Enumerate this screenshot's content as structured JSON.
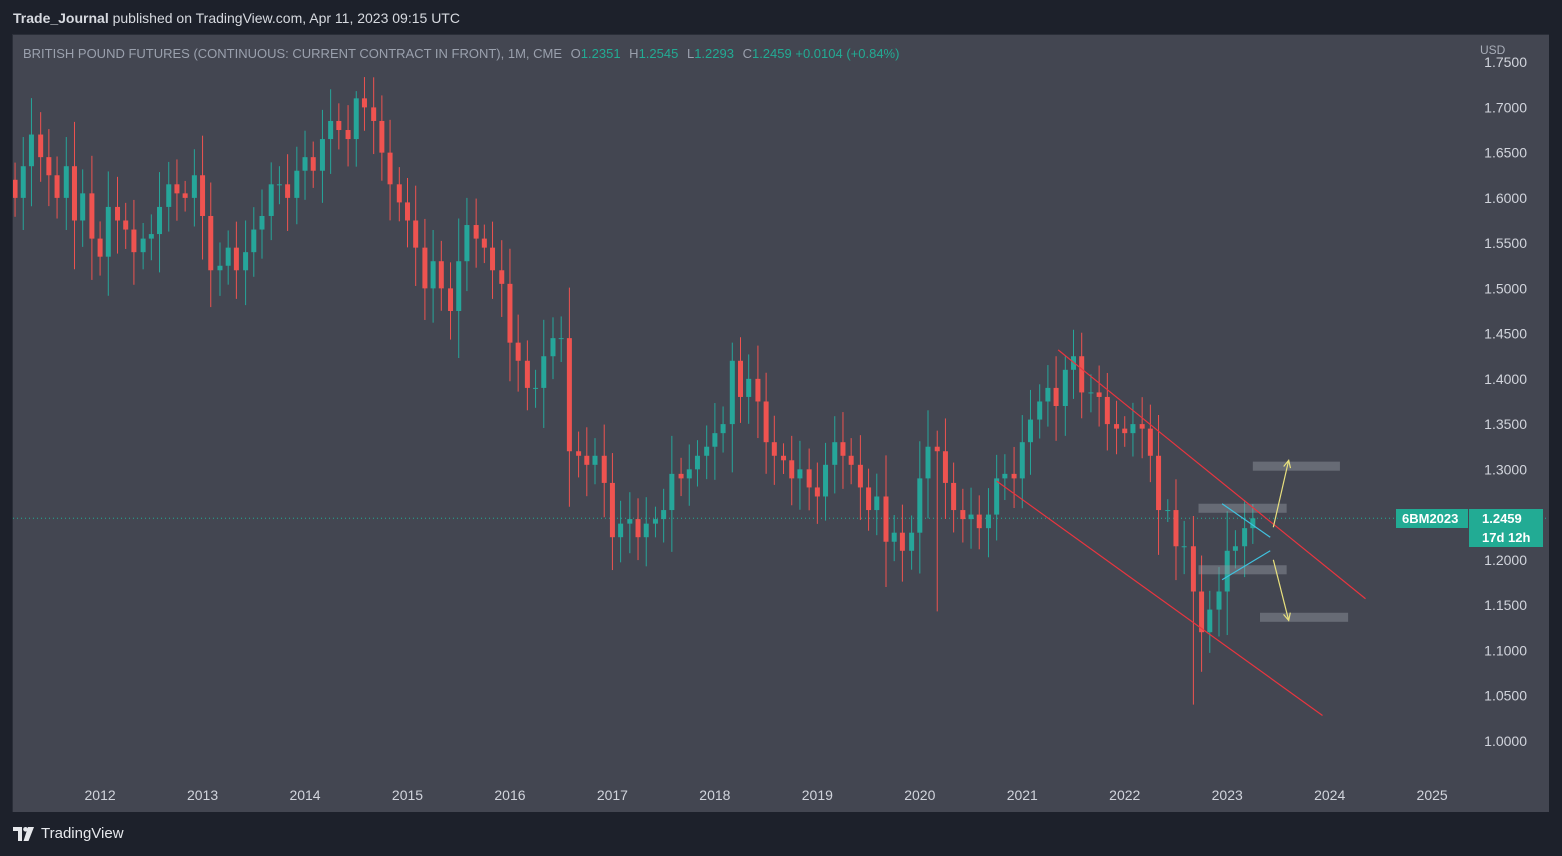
{
  "header": {
    "author": "Trade_Journal",
    "published_text": "published on TradingView.com, Apr 11, 2023 09:15 UTC"
  },
  "legend": {
    "symbol_description": "BRITISH POUND FUTURES (CONTINUOUS: CURRENT CONTRACT IN FRONT), 1M, CME",
    "open_label": "O",
    "open": "1.2351",
    "high_label": "H",
    "high": "1.2545",
    "low_label": "L",
    "low": "1.2293",
    "close_label": "C",
    "close": "1.2459",
    "change": "+0.0104 (+0.84%)"
  },
  "price_axis": {
    "currency": "USD"
  },
  "price_tag": {
    "symbol": "6BM2023",
    "price": "1.2459",
    "countdown": "17d 12h"
  },
  "footer": {
    "brand": "TradingView"
  },
  "colors": {
    "background": "#434651",
    "bull": "#26a69a",
    "bear": "#ef5350",
    "channel": "#e8353f",
    "triangle": "#3fc2df",
    "arrow": "#e8e07e",
    "zone": "#9598a1",
    "axis_text": "#d1d4dc"
  },
  "chart_data": {
    "type": "candlestick",
    "interval": "1M",
    "title": "BRITISH POUND FUTURES (CONTINUOUS: CURRENT CONTRACT IN FRONT), 1M, CME",
    "ylim": [
      0.96,
      1.78
    ],
    "xlim": [
      2011.15,
      2025.35
    ],
    "yticks": [
      1.0,
      1.05,
      1.1,
      1.15,
      1.2,
      1.25,
      1.3,
      1.35,
      1.4,
      1.45,
      1.5,
      1.55,
      1.6,
      1.65,
      1.7,
      1.75
    ],
    "ytick_labels": [
      "1.0000",
      "1.0500",
      "1.1000",
      "1.1500",
      "1.2000",
      "1.2500",
      "1.3000",
      "1.3500",
      "1.4000",
      "1.4500",
      "1.5000",
      "1.5500",
      "1.6000",
      "1.6500",
      "1.7000",
      "1.7500"
    ],
    "xticks": [
      2012,
      2013,
      2014,
      2015,
      2016,
      2017,
      2018,
      2019,
      2020,
      2021,
      2022,
      2023,
      2024,
      2025
    ],
    "xtick_labels": [
      "2012",
      "2013",
      "2014",
      "2015",
      "2016",
      "2017",
      "2018",
      "2019",
      "2020",
      "2021",
      "2022",
      "2023",
      "2024",
      "2025"
    ],
    "last_price": 1.2459,
    "close_path": [
      [
        2011.17,
        1.6
      ],
      [
        2011.25,
        1.635
      ],
      [
        2011.33,
        1.67
      ],
      [
        2011.42,
        1.645
      ],
      [
        2011.5,
        1.625
      ],
      [
        2011.58,
        1.6
      ],
      [
        2011.67,
        1.635
      ],
      [
        2011.75,
        1.575
      ],
      [
        2011.83,
        1.605
      ],
      [
        2011.92,
        1.555
      ],
      [
        2012.0,
        1.535
      ],
      [
        2012.08,
        1.59
      ],
      [
        2012.17,
        1.575
      ],
      [
        2012.25,
        1.565
      ],
      [
        2012.33,
        1.54
      ],
      [
        2012.42,
        1.555
      ],
      [
        2012.5,
        1.56
      ],
      [
        2012.58,
        1.59
      ],
      [
        2012.67,
        1.615
      ],
      [
        2012.75,
        1.605
      ],
      [
        2012.83,
        1.6
      ],
      [
        2012.92,
        1.625
      ],
      [
        2013.0,
        1.58
      ],
      [
        2013.08,
        1.52
      ],
      [
        2013.17,
        1.525
      ],
      [
        2013.25,
        1.545
      ],
      [
        2013.33,
        1.52
      ],
      [
        2013.42,
        1.54
      ],
      [
        2013.5,
        1.565
      ],
      [
        2013.58,
        1.58
      ],
      [
        2013.67,
        1.615
      ],
      [
        2013.75,
        1.615
      ],
      [
        2013.83,
        1.6
      ],
      [
        2013.92,
        1.63
      ],
      [
        2014.0,
        1.645
      ],
      [
        2014.08,
        1.63
      ],
      [
        2014.17,
        1.665
      ],
      [
        2014.25,
        1.685
      ],
      [
        2014.33,
        1.675
      ],
      [
        2014.42,
        1.665
      ],
      [
        2014.5,
        1.71
      ],
      [
        2014.58,
        1.7
      ],
      [
        2014.67,
        1.685
      ],
      [
        2014.75,
        1.65
      ],
      [
        2014.83,
        1.615
      ],
      [
        2014.92,
        1.595
      ],
      [
        2015.0,
        1.575
      ],
      [
        2015.08,
        1.545
      ],
      [
        2015.17,
        1.5
      ],
      [
        2015.25,
        1.53
      ],
      [
        2015.33,
        1.5
      ],
      [
        2015.42,
        1.475
      ],
      [
        2015.5,
        1.53
      ],
      [
        2015.58,
        1.57
      ],
      [
        2015.67,
        1.555
      ],
      [
        2015.75,
        1.545
      ],
      [
        2015.83,
        1.52
      ],
      [
        2015.92,
        1.505
      ],
      [
        2016.0,
        1.44
      ],
      [
        2016.08,
        1.42
      ],
      [
        2016.17,
        1.39
      ],
      [
        2016.25,
        1.39
      ],
      [
        2016.33,
        1.425
      ],
      [
        2016.42,
        1.445
      ],
      [
        2016.5,
        1.445
      ],
      [
        2016.58,
        1.32
      ],
      [
        2016.67,
        1.315
      ],
      [
        2016.75,
        1.305
      ],
      [
        2016.83,
        1.315
      ],
      [
        2016.92,
        1.285
      ],
      [
        2017.0,
        1.225
      ],
      [
        2017.08,
        1.24
      ],
      [
        2017.17,
        1.245
      ],
      [
        2017.25,
        1.225
      ],
      [
        2017.33,
        1.24
      ],
      [
        2017.42,
        1.245
      ],
      [
        2017.5,
        1.255
      ],
      [
        2017.58,
        1.295
      ],
      [
        2017.67,
        1.29
      ],
      [
        2017.75,
        1.3
      ],
      [
        2017.83,
        1.315
      ],
      [
        2017.92,
        1.325
      ],
      [
        2018.0,
        1.34
      ],
      [
        2018.08,
        1.35
      ],
      [
        2018.17,
        1.42
      ],
      [
        2018.25,
        1.38
      ],
      [
        2018.33,
        1.4
      ],
      [
        2018.42,
        1.375
      ],
      [
        2018.5,
        1.33
      ],
      [
        2018.58,
        1.315
      ],
      [
        2018.67,
        1.31
      ],
      [
        2018.75,
        1.29
      ],
      [
        2018.83,
        1.3
      ],
      [
        2018.92,
        1.28
      ],
      [
        2019.0,
        1.27
      ],
      [
        2019.08,
        1.305
      ],
      [
        2019.17,
        1.33
      ],
      [
        2019.25,
        1.315
      ],
      [
        2019.33,
        1.305
      ],
      [
        2019.42,
        1.28
      ],
      [
        2019.5,
        1.255
      ],
      [
        2019.58,
        1.27
      ],
      [
        2019.67,
        1.22
      ],
      [
        2019.75,
        1.23
      ],
      [
        2019.83,
        1.21
      ],
      [
        2019.92,
        1.23
      ],
      [
        2020.0,
        1.29
      ],
      [
        2020.08,
        1.325
      ],
      [
        2020.17,
        1.32
      ],
      [
        2020.25,
        1.285
      ],
      [
        2020.33,
        1.255
      ],
      [
        2020.42,
        1.245
      ],
      [
        2020.5,
        1.25
      ],
      [
        2020.58,
        1.235
      ],
      [
        2020.67,
        1.25
      ],
      [
        2020.75,
        1.29
      ],
      [
        2020.83,
        1.295
      ],
      [
        2020.92,
        1.29
      ],
      [
        2021.0,
        1.33
      ],
      [
        2021.08,
        1.355
      ],
      [
        2021.17,
        1.375
      ],
      [
        2021.25,
        1.39
      ],
      [
        2021.33,
        1.37
      ],
      [
        2021.42,
        1.41
      ],
      [
        2021.5,
        1.425
      ],
      [
        2021.58,
        1.385
      ],
      [
        2021.67,
        1.385
      ],
      [
        2021.75,
        1.38
      ],
      [
        2021.83,
        1.35
      ],
      [
        2021.92,
        1.345
      ],
      [
        2022.0,
        1.34
      ],
      [
        2022.08,
        1.35
      ],
      [
        2022.17,
        1.345
      ],
      [
        2022.25,
        1.315
      ],
      [
        2022.33,
        1.255
      ],
      [
        2022.42,
        1.255
      ],
      [
        2022.5,
        1.215
      ],
      [
        2022.58,
        1.215
      ],
      [
        2022.67,
        1.165
      ],
      [
        2022.75,
        1.12
      ],
      [
        2022.83,
        1.145
      ],
      [
        2022.92,
        1.165
      ],
      [
        2023.0,
        1.21
      ],
      [
        2023.08,
        1.215
      ],
      [
        2023.17,
        1.235
      ],
      [
        2023.25,
        1.2459
      ]
    ],
    "drawings": {
      "descending_channel": {
        "upper_line": [
          [
            2021.35,
            1.432
          ],
          [
            2024.35,
            1.157
          ]
        ],
        "lower_line": [
          [
            2020.75,
            1.287
          ],
          [
            2023.93,
            1.028
          ]
        ]
      },
      "triangle": {
        "upper_line": [
          [
            2022.95,
            1.262
          ],
          [
            2023.42,
            1.225
          ]
        ],
        "lower_line": [
          [
            2022.95,
            1.178
          ],
          [
            2023.42,
            1.21
          ]
        ]
      },
      "zones": [
        {
          "x": [
            2023.25,
            2024.1
          ],
          "y": [
            1.2985,
            1.3085
          ]
        },
        {
          "x": [
            2022.72,
            2023.58
          ],
          "y": [
            1.252,
            1.262
          ]
        },
        {
          "x": [
            2022.72,
            2023.58
          ],
          "y": [
            1.184,
            1.194
          ]
        },
        {
          "x": [
            2023.32,
            2024.18
          ],
          "y": [
            1.1315,
            1.1415
          ]
        }
      ],
      "arrows": [
        {
          "from": [
            2023.45,
            1.236
          ],
          "to": [
            2023.6,
            1.31
          ]
        },
        {
          "from": [
            2023.45,
            1.2
          ],
          "to": [
            2023.6,
            1.133
          ]
        }
      ]
    }
  }
}
